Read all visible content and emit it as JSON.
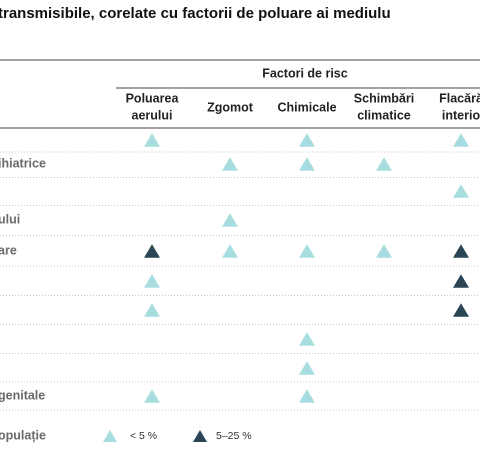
{
  "title": "transmisibile, corelate cu factorii de poluare ai mediulu",
  "table": {
    "group_header": "Factori de risc",
    "columns": [
      [
        "Poluarea",
        "aerului"
      ],
      [
        "Zgomot"
      ],
      [
        "Chimicale"
      ],
      [
        "Schimbări",
        "climatice"
      ],
      [
        "Flacără",
        "interio"
      ]
    ],
    "rows": [
      {
        "label": null,
        "marks": [
          0,
          null,
          0,
          null,
          0
        ]
      },
      {
        "label": "ihiatrice",
        "marks": [
          null,
          0,
          0,
          0,
          null
        ]
      },
      {
        "label": null,
        "marks": [
          null,
          null,
          null,
          null,
          0
        ]
      },
      {
        "label": "ului",
        "marks": [
          null,
          0,
          null,
          null,
          null
        ]
      },
      {
        "label": "are",
        "marks": [
          1,
          0,
          0,
          0,
          1
        ]
      },
      {
        "label": null,
        "marks": [
          0,
          null,
          null,
          null,
          1
        ]
      },
      {
        "label": null,
        "marks": [
          0,
          null,
          null,
          null,
          1
        ]
      },
      {
        "label": null,
        "marks": [
          null,
          null,
          0,
          null,
          null
        ]
      },
      {
        "label": null,
        "marks": [
          null,
          null,
          0,
          null,
          null
        ]
      },
      {
        "label": "genitale",
        "marks": [
          0,
          null,
          0,
          null,
          null
        ]
      }
    ]
  },
  "legend": {
    "label": "opulație",
    "items": [
      {
        "label": "< 5 %",
        "color": "#a8dde0"
      },
      {
        "label": "5–25 %",
        "color": "#2a4656"
      }
    ]
  }
}
